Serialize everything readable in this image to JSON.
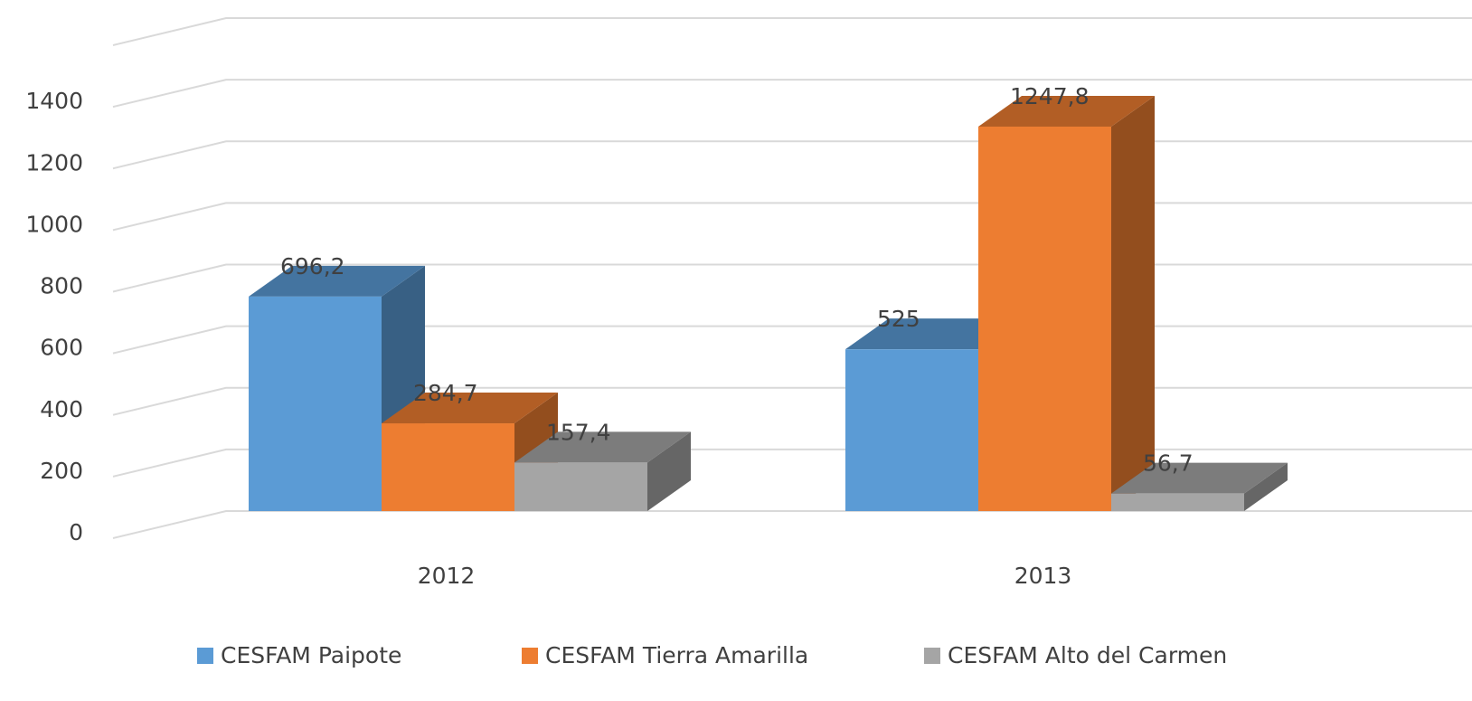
{
  "chart_data": {
    "type": "bar3d",
    "categories": [
      "2012",
      "2013"
    ],
    "series": [
      {
        "name": "CESFAM Paipote",
        "color": "#5b9bd5",
        "values": [
          696.2,
          525
        ],
        "value_labels": [
          "696,2",
          "525"
        ]
      },
      {
        "name": "CESFAM Tierra Amarilla",
        "color": "#ed7d31",
        "values": [
          284.7,
          1247.8
        ],
        "value_labels": [
          "284,7",
          "1247,8"
        ]
      },
      {
        "name": "CESFAM Alto del Carmen",
        "color": "#a5a5a5",
        "values": [
          157.4,
          56.7
        ],
        "value_labels": [
          "157,4",
          "56,7"
        ]
      }
    ],
    "ylim": [
      0,
      1600
    ],
    "yticks": [
      0,
      200,
      400,
      600,
      800,
      1000,
      1200,
      1400
    ],
    "grid": true,
    "legend": "bottom"
  }
}
